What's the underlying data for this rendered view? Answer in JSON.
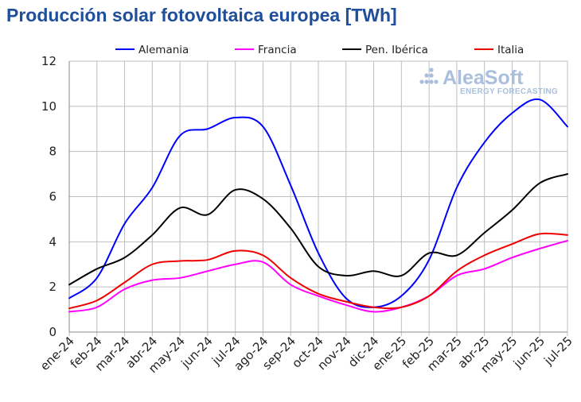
{
  "title": "Producción solar fotovoltaica europea [TWh]",
  "watermark": {
    "brand": "AleaSoft",
    "tagline": "ENERGY FORECASTING",
    "color": "#A9BFDC"
  },
  "chart_data": {
    "type": "line",
    "title": "Producción solar fotovoltaica europea [TWh]",
    "categories": [
      "ene-24",
      "feb-24",
      "mar-24",
      "abr-24",
      "may-24",
      "jun-24",
      "jul-24",
      "ago-24",
      "sep-24",
      "oct-24",
      "nov-24",
      "dic-24",
      "ene-25",
      "feb-25",
      "mar-25",
      "abr-25",
      "may-25",
      "jun-25",
      "jul-25"
    ],
    "yticks": [
      0,
      2,
      4,
      6,
      8,
      10,
      12
    ],
    "ylim": [
      0,
      12
    ],
    "grid": true,
    "legend_position": "top",
    "series": [
      {
        "name": "Alemania",
        "color": "#0000FF",
        "values": [
          1.5,
          2.4,
          4.8,
          6.4,
          8.7,
          9.0,
          9.5,
          9.1,
          6.5,
          3.5,
          1.5,
          1.1,
          1.6,
          3.2,
          6.4,
          8.4,
          9.7,
          10.3,
          9.1
        ]
      },
      {
        "name": "Francia",
        "color": "#FF00FF",
        "values": [
          0.9,
          1.1,
          1.9,
          2.3,
          2.4,
          2.7,
          3.0,
          3.1,
          2.1,
          1.6,
          1.2,
          0.9,
          1.1,
          1.6,
          2.5,
          2.8,
          3.3,
          3.7,
          4.05
        ]
      },
      {
        "name": "Pen. Ibérica",
        "color": "#000000",
        "values": [
          2.1,
          2.8,
          3.3,
          4.3,
          5.5,
          5.2,
          6.3,
          5.9,
          4.6,
          2.9,
          2.5,
          2.7,
          2.5,
          3.5,
          3.4,
          4.4,
          5.4,
          6.6,
          7.0
        ]
      },
      {
        "name": "Italia",
        "color": "#EE0000",
        "values": [
          1.05,
          1.4,
          2.2,
          3.0,
          3.15,
          3.2,
          3.6,
          3.4,
          2.4,
          1.7,
          1.35,
          1.1,
          1.1,
          1.6,
          2.7,
          3.4,
          3.9,
          4.35,
          4.3
        ]
      }
    ]
  }
}
